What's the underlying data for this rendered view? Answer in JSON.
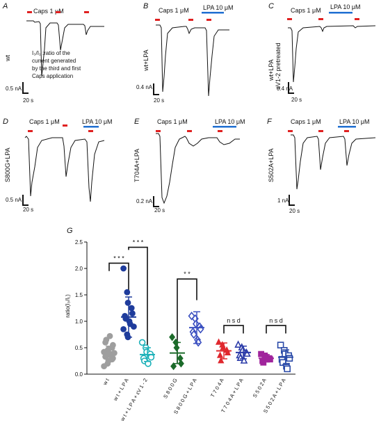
{
  "colors": {
    "caps_bar": "#e02020",
    "lpa_bar": "#1f6fd1",
    "trace": "#111111",
    "wt": "#9e9e9e",
    "wt_lpa": "#1f3c9c",
    "wt_lpa_ev": "#1ab0b8",
    "s800g": "#1c6b2a",
    "s800g_lpa": "#3a4fc0",
    "t704a": "#e0282e",
    "t704a_lpa": "#2a3aa8",
    "s502a": "#a0249c",
    "s502a_lpa": "#2a4aa8"
  },
  "panels": [
    {
      "letter": "A",
      "label": "wt",
      "caps_label": "Caps 1 μM",
      "lpa_label": "",
      "ylabel": "0.5 nA",
      "xlabel": "20 s",
      "note": [
        "I₃/I₁ :ratio of the",
        "current generated",
        "by the third and first",
        "Caps application"
      ]
    },
    {
      "letter": "B",
      "label": "wt+LPA",
      "caps_label": "Caps 1 μM",
      "lpa_label": "LPA 10 μM",
      "ylabel": "0.4 nA",
      "xlabel": "20 s"
    },
    {
      "letter": "C",
      "label": "wt+LPA",
      "label2": "εV1-2 pretreated",
      "caps_label": "Caps 1 μM",
      "lpa_label": "LPA 10 μM",
      "ylabel": "0.4 nA",
      "xlabel": "20 s"
    },
    {
      "letter": "D",
      "label": "S800G+LPA",
      "caps_label": "Caps 1 μM",
      "lpa_label": "LPA 10 μM",
      "ylabel": "0.5 nA",
      "xlabel": "20 s"
    },
    {
      "letter": "E",
      "label": "T704A+LPA",
      "caps_label": "Caps 1 μM",
      "lpa_label": "LPA 10 μM",
      "ylabel": "0.2 nA",
      "xlabel": "20 s"
    },
    {
      "letter": "F",
      "label": "S502A+LPA",
      "caps_label": "Caps 1 μM",
      "lpa_label": "LPA 10 μM",
      "ylabel": "1 nA",
      "xlabel": "20 s"
    }
  ],
  "chart_data": {
    "type": "scatter",
    "panel_letter": "G",
    "ylabel": "ratio(I₃/I₁)",
    "ylim": [
      0,
      2.5
    ],
    "yticks": [
      "0.0",
      "0.5",
      "1.0",
      "1.5",
      "2.0",
      "2.5"
    ],
    "groups": [
      {
        "name": "w t",
        "mean": 0.39,
        "sd": 0.14,
        "color": "#9e9e9e",
        "marker": "circle",
        "filled": true,
        "values": [
          0.15,
          0.2,
          0.25,
          0.28,
          0.3,
          0.33,
          0.35,
          0.37,
          0.38,
          0.4,
          0.42,
          0.45,
          0.47,
          0.5,
          0.55,
          0.6,
          0.65,
          0.72
        ]
      },
      {
        "name": "w t + L P A",
        "mean": 1.08,
        "sd": 0.38,
        "color": "#1f3c9c",
        "marker": "circle",
        "filled": true,
        "values": [
          2.0,
          1.55,
          1.35,
          1.25,
          1.15,
          1.1,
          1.05,
          1.0,
          0.95,
          0.9,
          0.85,
          0.75,
          0.7
        ]
      },
      {
        "name": "w t + L P A + εV 1 - 2",
        "mean": 0.37,
        "sd": 0.13,
        "color": "#1ab0b8",
        "marker": "circle",
        "filled": false,
        "values": [
          0.6,
          0.5,
          0.42,
          0.38,
          0.32,
          0.3,
          0.25,
          0.2
        ]
      },
      {
        "name": "S 8 0 0 G",
        "mean": 0.4,
        "sd": 0.2,
        "color": "#1c6b2a",
        "marker": "diamond",
        "filled": true,
        "values": [
          0.7,
          0.6,
          0.5,
          0.3,
          0.2,
          0.15
        ]
      },
      {
        "name": "S 8 0 0 G + L P A",
        "mean": 0.88,
        "sd": 0.3,
        "color": "#3a4fc0",
        "marker": "diamond",
        "filled": false,
        "values": [
          1.1,
          1.05,
          0.95,
          0.9,
          0.85,
          0.8,
          0.75,
          0.65,
          0.6
        ]
      },
      {
        "name": "T 7 0 4 A",
        "mean": 0.44,
        "sd": 0.15,
        "color": "#e0282e",
        "marker": "triangle",
        "filled": true,
        "values": [
          0.6,
          0.55,
          0.5,
          0.45,
          0.4,
          0.35,
          0.25
        ]
      },
      {
        "name": "T 7 0 4 A + L P A",
        "mean": 0.41,
        "sd": 0.12,
        "color": "#2a3aa8",
        "marker": "triangle",
        "filled": false,
        "values": [
          0.55,
          0.5,
          0.45,
          0.4,
          0.38,
          0.35,
          0.3,
          0.25
        ]
      },
      {
        "name": "S 5 0 2 A",
        "mean": 0.3,
        "sd": 0.07,
        "color": "#a0249c",
        "marker": "square",
        "filled": true,
        "values": [
          0.38,
          0.35,
          0.32,
          0.3,
          0.28,
          0.25,
          0.22
        ]
      },
      {
        "name": "S 5 0 2 A + L P A",
        "mean": 0.32,
        "sd": 0.14,
        "color": "#2a4aa8",
        "marker": "square",
        "filled": false,
        "values": [
          0.55,
          0.45,
          0.38,
          0.35,
          0.3,
          0.28,
          0.22,
          0.15,
          0.1
        ]
      }
    ],
    "significance": [
      "* * *",
      "* * *",
      "* *",
      "n s d",
      "n s d"
    ]
  }
}
